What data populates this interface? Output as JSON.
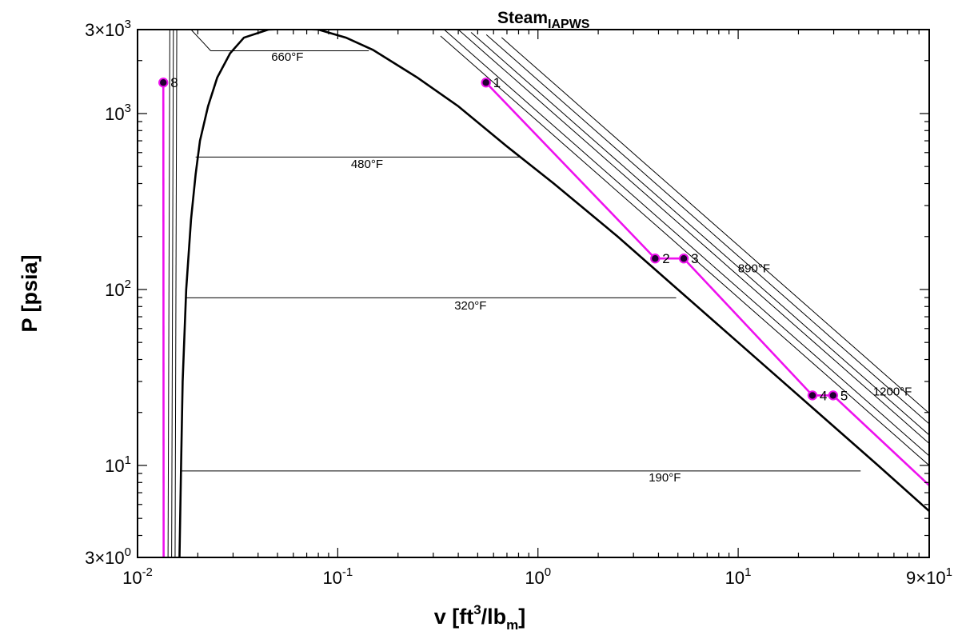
{
  "chart_data": {
    "type": "line",
    "title": "Steam",
    "title_subscript": "IAPWS",
    "xlabel": "v [ft³/lbm]",
    "xlabel_parts": {
      "main": "v [ft",
      "sup": "3",
      "mid": "/lb",
      "sub": "m",
      "end": "]"
    },
    "ylabel": "P [psia]",
    "x_scale": "log",
    "y_scale": "log",
    "xlim": [
      0.01,
      90
    ],
    "ylim": [
      3,
      3000
    ],
    "x_ticks": [
      {
        "value": 0.01,
        "base": "10",
        "exp": "-2"
      },
      {
        "value": 0.1,
        "base": "10",
        "exp": "-1"
      },
      {
        "value": 1,
        "base": "10",
        "exp": "0"
      },
      {
        "value": 10,
        "base": "10",
        "exp": "1"
      },
      {
        "value": 90,
        "base": "9×10",
        "exp": "1"
      }
    ],
    "y_ticks": [
      {
        "value": 3,
        "base": "3×10",
        "exp": "0"
      },
      {
        "value": 10,
        "base": "10",
        "exp": "1"
      },
      {
        "value": 100,
        "base": "10",
        "exp": "2"
      },
      {
        "value": 1000,
        "base": "10",
        "exp": "3"
      },
      {
        "value": 3000,
        "base": "3×10",
        "exp": "3"
      }
    ],
    "grid": false,
    "saturation_dome": {
      "liquid_line": [
        [
          0.0162,
          3
        ],
        [
          0.0165,
          10
        ],
        [
          0.0168,
          30
        ],
        [
          0.0175,
          100
        ],
        [
          0.0185,
          250
        ],
        [
          0.0195,
          450
        ],
        [
          0.0205,
          700
        ],
        [
          0.0225,
          1100
        ],
        [
          0.025,
          1600
        ],
        [
          0.029,
          2200
        ],
        [
          0.034,
          2700
        ],
        [
          0.045,
          3000
        ]
      ],
      "vapor_line": [
        [
          0.08,
          3000
        ],
        [
          0.11,
          2700
        ],
        [
          0.15,
          2300
        ],
        [
          0.25,
          1600
        ],
        [
          0.4,
          1100
        ],
        [
          0.7,
          650
        ],
        [
          1.2,
          400
        ],
        [
          2.5,
          200
        ],
        [
          5,
          100
        ],
        [
          10,
          50
        ],
        [
          25,
          20
        ],
        [
          50,
          10
        ],
        [
          90,
          5.5
        ]
      ]
    },
    "isotherms": [
      {
        "label": "190°F",
        "liquid": [
          0.0164,
          9.3
        ],
        "vapor": [
          40.9,
          9.3
        ],
        "label_at": [
          4.3,
          8.1
        ]
      },
      {
        "label": "320°F",
        "liquid": [
          0.0175,
          89.7
        ],
        "vapor": [
          4.9,
          89.7
        ],
        "label_at": [
          0.46,
          77
        ]
      },
      {
        "label": "480°F",
        "liquid": [
          0.0195,
          566
        ],
        "vapor": [
          0.82,
          566
        ],
        "label_at": [
          0.14,
          490
        ]
      },
      {
        "label": "660°F",
        "liquid": [
          0.0232,
          2273
        ],
        "vapor": [
          0.143,
          2273
        ],
        "label_at": [
          0.056,
          1990
        ]
      },
      {
        "label": "890°F",
        "label_at": [
          12,
          125
        ]
      },
      {
        "label": "1200°F",
        "label_at": [
          59,
          25
        ]
      }
    ],
    "superheat_curves": [
      {
        "c": 900
      },
      {
        "c": 1020
      },
      {
        "c": 1200
      },
      {
        "c": 1340
      },
      {
        "c": 1550
      },
      {
        "c": 1780
      }
    ],
    "cycle_color": "#ee11ee",
    "marker_color": "#220033",
    "cycle_points": [
      {
        "label": "1",
        "v": 0.55,
        "p": 1500
      },
      {
        "label": "2",
        "v": 3.85,
        "p": 150
      },
      {
        "label": "3",
        "v": 5.35,
        "p": 150
      },
      {
        "label": "4",
        "v": 23.5,
        "p": 25
      },
      {
        "label": "5",
        "v": 29.8,
        "p": 25
      },
      {
        "label": "8",
        "v": 0.01345,
        "p": 1500
      }
    ],
    "cycle_segments": [
      [
        [
          0.55,
          1500
        ],
        [
          3.85,
          150
        ]
      ],
      [
        [
          3.85,
          150
        ],
        [
          5.35,
          150
        ]
      ],
      [
        [
          5.35,
          150
        ],
        [
          23.5,
          25
        ]
      ],
      [
        [
          23.5,
          25
        ],
        [
          29.8,
          25
        ]
      ],
      [
        [
          29.8,
          25
        ],
        [
          90,
          7.7
        ]
      ],
      [
        [
          0.01345,
          1500
        ],
        [
          0.0135,
          3
        ]
      ]
    ]
  }
}
